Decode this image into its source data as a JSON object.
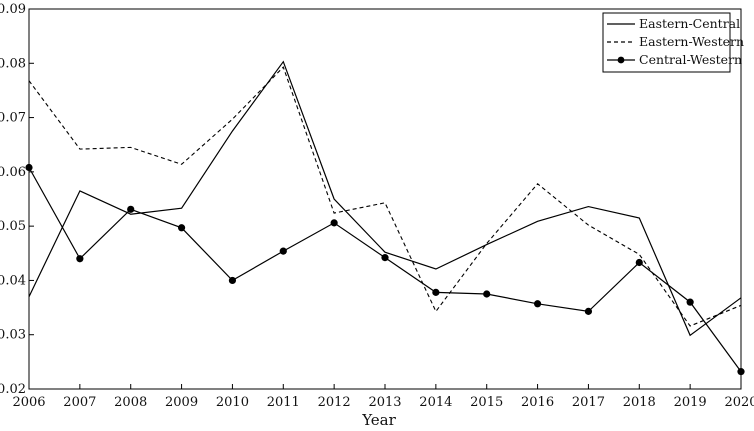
{
  "chart_data": {
    "type": "line",
    "title": "",
    "xlabel": "Year",
    "ylabel": "",
    "x": [
      2006,
      2007,
      2008,
      2009,
      2010,
      2011,
      2012,
      2013,
      2014,
      2015,
      2016,
      2017,
      2018,
      2019,
      2020
    ],
    "xticks": [
      "2006",
      "2007",
      "2008",
      "2009",
      "2010",
      "2011",
      "2012",
      "2013",
      "2014",
      "2015",
      "2016",
      "2017",
      "2018",
      "2019",
      "2020"
    ],
    "yticks": [
      "0.02",
      "0.03",
      "0.04",
      "0.05",
      "0.06",
      "0.07",
      "0.08",
      "0.09"
    ],
    "xlim": [
      2006,
      2020
    ],
    "ylim": [
      0.02,
      0.09
    ],
    "grid": false,
    "legend_position": "top-right",
    "series": [
      {
        "name": "Eastern-Central",
        "style": "solid",
        "marker": "none",
        "values": [
          0.037,
          0.0565,
          0.0522,
          0.0533,
          0.0675,
          0.0803,
          0.055,
          0.0452,
          0.0421,
          0.0466,
          0.0509,
          0.0536,
          0.0515,
          0.0299,
          0.0368
        ]
      },
      {
        "name": "Eastern-Western",
        "style": "dashed",
        "marker": "none",
        "values": [
          0.0768,
          0.0642,
          0.0645,
          0.0614,
          0.0697,
          0.0793,
          0.0524,
          0.0543,
          0.0343,
          0.0468,
          0.0578,
          0.0502,
          0.0448,
          0.0316,
          0.0354
        ]
      },
      {
        "name": "Central-Western",
        "style": "solid",
        "marker": "circle",
        "values": [
          0.0608,
          0.044,
          0.0531,
          0.0497,
          0.04,
          0.0454,
          0.0506,
          0.0442,
          0.0378,
          0.0375,
          0.0357,
          0.0343,
          0.0433,
          0.036,
          0.0232
        ]
      }
    ]
  }
}
